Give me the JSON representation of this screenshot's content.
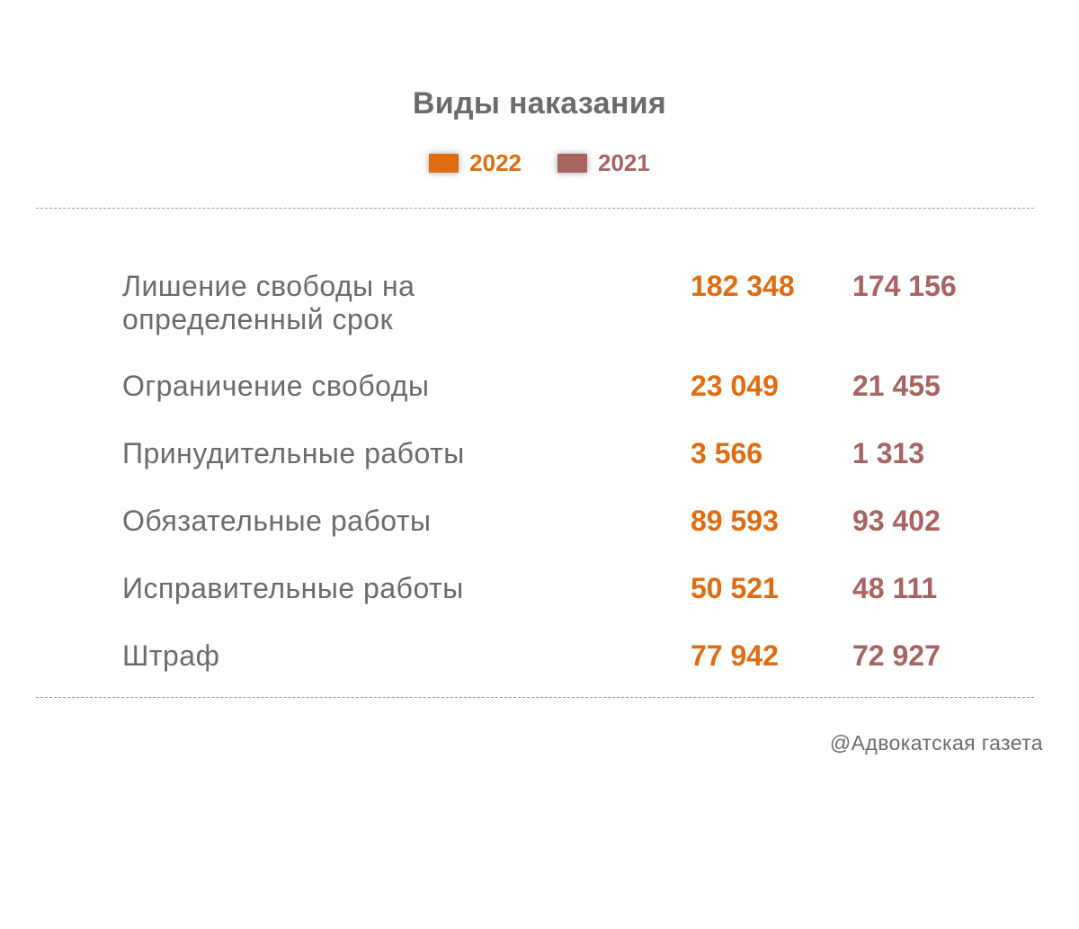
{
  "colors": {
    "series_2022": "#e06c12",
    "series_2021": "#a86460",
    "text": "#6b6b6b"
  },
  "chart_data": {
    "type": "table",
    "title": "Виды наказания",
    "legend": [
      "2022",
      "2021"
    ],
    "series": [
      {
        "name": "2022",
        "values": [
          182348,
          23049,
          3566,
          89593,
          50521,
          77942
        ]
      },
      {
        "name": "2021",
        "values": [
          174156,
          21455,
          1313,
          93402,
          48111,
          72927
        ]
      }
    ],
    "rows": [
      {
        "label": "Лишение свободы на определенный срок",
        "v2022": "182 348",
        "v2021": "174 156"
      },
      {
        "label": "Ограничение свободы",
        "v2022": "23 049",
        "v2021": "21 455"
      },
      {
        "label": "Принудительные работы",
        "v2022": "3 566",
        "v2021": "1 313"
      },
      {
        "label": "Обязательные работы",
        "v2022": "89 593",
        "v2021": "93 402"
      },
      {
        "label": "Исправительные работы",
        "v2022": "50 521",
        "v2021": "48 111"
      },
      {
        "label": "Штраф",
        "v2022": "77 942",
        "v2021": "72 927"
      }
    ]
  },
  "source": "@Адвокатская газета"
}
